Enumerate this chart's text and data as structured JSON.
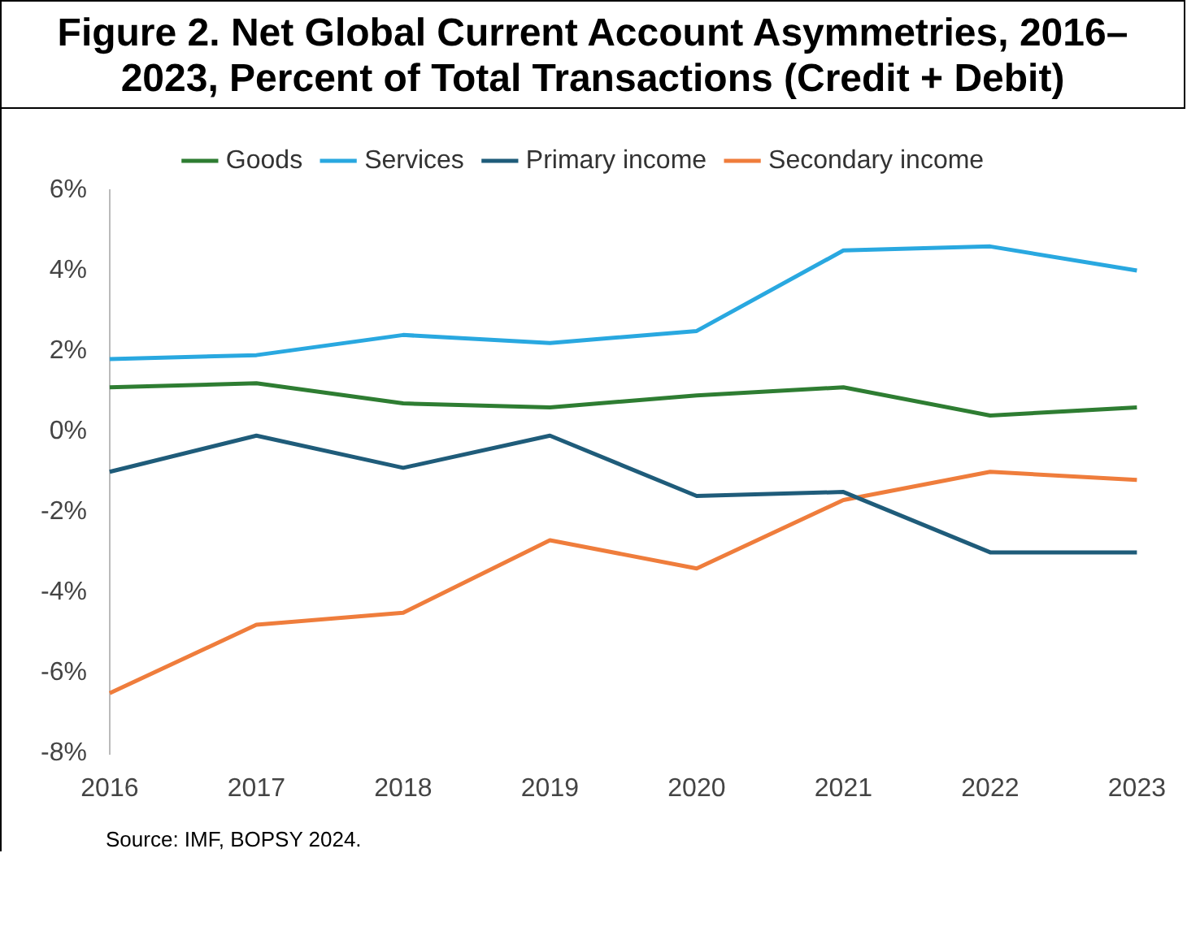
{
  "chart_data": {
    "type": "line",
    "title": "Figure 2. Net Global Current Account Asymmetries, 2016–2023, Percent of Total Transactions (Credit + Debit)",
    "categories": [
      "2016",
      "2017",
      "2018",
      "2019",
      "2020",
      "2021",
      "2022",
      "2023"
    ],
    "series": [
      {
        "name": "Goods",
        "color": "#2e7d32",
        "values": [
          1.1,
          1.2,
          0.7,
          0.6,
          0.9,
          1.1,
          0.4,
          0.6
        ]
      },
      {
        "name": "Services",
        "color": "#29a8e0",
        "values": [
          1.8,
          1.9,
          2.4,
          2.2,
          2.5,
          4.5,
          4.6,
          4.0
        ]
      },
      {
        "name": "Primary income",
        "color": "#1f5c7a",
        "values": [
          -1.0,
          -0.1,
          -0.9,
          -0.1,
          -1.6,
          -1.5,
          -3.0,
          -3.0
        ]
      },
      {
        "name": "Secondary income",
        "color": "#ef7d3c",
        "values": [
          -6.5,
          -4.8,
          -4.5,
          -2.7,
          -3.4,
          -1.7,
          -1.0,
          -1.2
        ]
      }
    ],
    "ylim": [
      -8,
      6
    ],
    "yticks": [
      {
        "value": -8,
        "label": "-8%"
      },
      {
        "value": -6,
        "label": "-6%"
      },
      {
        "value": -4,
        "label": "-4%"
      },
      {
        "value": -2,
        "label": "-2%"
      },
      {
        "value": 0,
        "label": "0%"
      },
      {
        "value": 2,
        "label": "2%"
      },
      {
        "value": 4,
        "label": "4%"
      },
      {
        "value": 6,
        "label": "6%"
      }
    ],
    "grid": false,
    "legend": "top",
    "marker": "none",
    "line_style": "solid",
    "annotations": [
      "Source: IMF, BOPSY 2024."
    ]
  }
}
